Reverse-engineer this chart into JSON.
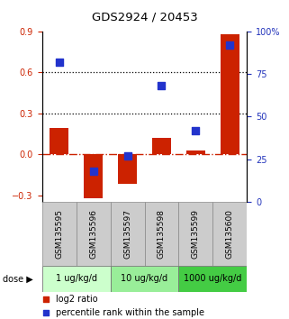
{
  "title": "GDS2924 / 20453",
  "samples": [
    "GSM135595",
    "GSM135596",
    "GSM135597",
    "GSM135598",
    "GSM135599",
    "GSM135600"
  ],
  "log2_ratio": [
    0.19,
    -0.32,
    -0.22,
    0.12,
    0.03,
    0.88
  ],
  "percentile_rank": [
    82,
    18,
    27,
    68,
    42,
    92
  ],
  "ylim_left": [
    -0.35,
    0.9
  ],
  "ylim_right": [
    0,
    100
  ],
  "yticks_left": [
    -0.3,
    0.0,
    0.3,
    0.6,
    0.9
  ],
  "yticks_right": [
    0,
    25,
    50,
    75,
    100
  ],
  "hlines": [
    0.3,
    0.6
  ],
  "bar_color": "#cc2200",
  "dot_color": "#2233cc",
  "zero_line_color": "#cc2200",
  "dose_groups": [
    {
      "label": "1 ug/kg/d",
      "n": 2,
      "color": "#ccffcc"
    },
    {
      "label": "10 ug/kg/d",
      "n": 2,
      "color": "#99ee99"
    },
    {
      "label": "1000 ug/kg/d",
      "n": 2,
      "color": "#44cc44"
    }
  ],
  "tick_label_color_left": "#cc2200",
  "tick_label_color_right": "#2233bb",
  "bar_width": 0.55,
  "dot_size": 30,
  "legend_bar_label": "log2 ratio",
  "legend_dot_label": "percentile rank within the sample"
}
